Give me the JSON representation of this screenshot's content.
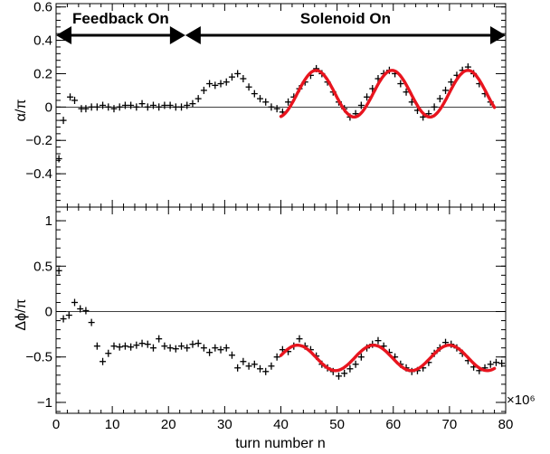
{
  "chart_data": [
    {
      "type": "scatter",
      "ylabel": "α/π",
      "xlim": [
        0,
        80
      ],
      "ylim": [
        -0.6,
        0.62
      ],
      "yticks": [
        -0.4,
        -0.2,
        0,
        0.2,
        0.4,
        0.6
      ],
      "ytick_labels": [
        "−0.4",
        "−0.2",
        "0",
        "0.2",
        "0.4",
        "0.6"
      ],
      "zero_line": true,
      "annotations": [
        {
          "text": "Feedback On",
          "arrow_from": 0,
          "arrow_to": 23
        },
        {
          "text": "Solenoid On",
          "arrow_from": 23,
          "arrow_to": 80
        }
      ],
      "series": [
        {
          "style": "crosses",
          "color": "#000000",
          "points": [
            [
              0.5,
              -0.31
            ],
            [
              1.3,
              -0.08
            ],
            [
              2.5,
              0.06
            ],
            [
              3.3,
              0.04
            ],
            [
              4.5,
              -0.01
            ],
            [
              5.3,
              -0.01
            ],
            [
              6.3,
              0.0
            ],
            [
              7.3,
              0.0
            ],
            [
              8.3,
              0.01
            ],
            [
              9.3,
              0.0
            ],
            [
              10.3,
              -0.01
            ],
            [
              11.3,
              0.0
            ],
            [
              12.3,
              0.01
            ],
            [
              13.3,
              0.01
            ],
            [
              14.3,
              0.0
            ],
            [
              15.3,
              0.02
            ],
            [
              16.3,
              0.0
            ],
            [
              17.3,
              0.01
            ],
            [
              18.3,
              0.0
            ],
            [
              19.3,
              0.01
            ],
            [
              20.3,
              0.01
            ],
            [
              21.3,
              0.0
            ],
            [
              22.3,
              0.0
            ],
            [
              23.3,
              0.01
            ],
            [
              24.3,
              0.02
            ],
            [
              25.3,
              0.05
            ],
            [
              26.3,
              0.1
            ],
            [
              27.3,
              0.14
            ],
            [
              28.3,
              0.13
            ],
            [
              29.3,
              0.14
            ],
            [
              30.3,
              0.15
            ],
            [
              31.3,
              0.18
            ],
            [
              32.3,
              0.2
            ],
            [
              33.3,
              0.17
            ],
            [
              34.3,
              0.12
            ],
            [
              35.3,
              0.08
            ],
            [
              36.3,
              0.05
            ],
            [
              37.3,
              0.03
            ],
            [
              38.3,
              0.0
            ],
            [
              39.3,
              -0.01
            ],
            [
              40.3,
              -0.03
            ],
            [
              41.3,
              0.03
            ],
            [
              42.3,
              0.06
            ],
            [
              43.3,
              0.11
            ],
            [
              44.3,
              0.15
            ],
            [
              45.3,
              0.19
            ],
            [
              46.3,
              0.23
            ],
            [
              47.3,
              0.2
            ],
            [
              48.3,
              0.15
            ],
            [
              49.3,
              0.09
            ],
            [
              50.3,
              0.03
            ],
            [
              51.3,
              -0.01
            ],
            [
              52.3,
              -0.06
            ],
            [
              53.3,
              -0.04
            ],
            [
              54.3,
              0.01
            ],
            [
              55.3,
              0.06
            ],
            [
              56.3,
              0.11
            ],
            [
              57.3,
              0.17
            ],
            [
              58.3,
              0.2
            ],
            [
              59.3,
              0.22
            ],
            [
              60.3,
              0.2
            ],
            [
              61.3,
              0.14
            ],
            [
              62.3,
              0.09
            ],
            [
              63.3,
              0.03
            ],
            [
              64.3,
              -0.02
            ],
            [
              65.3,
              -0.06
            ],
            [
              66.3,
              -0.04
            ],
            [
              67.3,
              0.0
            ],
            [
              68.3,
              0.05
            ],
            [
              69.3,
              0.1
            ],
            [
              70.3,
              0.15
            ],
            [
              71.3,
              0.19
            ],
            [
              72.3,
              0.22
            ],
            [
              73.3,
              0.24
            ],
            [
              74.3,
              0.2
            ],
            [
              75.3,
              0.14
            ],
            [
              76.3,
              0.08
            ],
            [
              77.3,
              0.03
            ]
          ]
        },
        {
          "style": "line",
          "color": "#e8141e",
          "fit": {
            "x_from": 40,
            "x_to": 78,
            "offset": 0.08,
            "amplitude": 0.14,
            "period": 13.5,
            "phase_x": 42.9
          }
        }
      ]
    },
    {
      "type": "scatter",
      "ylabel": "Δϕ/π",
      "xlabel": "turn number n",
      "xlim": [
        0,
        80
      ],
      "ylim": [
        -1.12,
        1.15
      ],
      "xticks": [
        0,
        10,
        20,
        30,
        40,
        50,
        60,
        70,
        80
      ],
      "xtick_labels": [
        "0",
        "10",
        "20",
        "30",
        "40",
        "50",
        "60",
        "70",
        "80"
      ],
      "yticks": [
        -1,
        -0.5,
        0,
        0.5,
        1
      ],
      "ytick_labels": [
        "−1",
        "−0.5",
        "0",
        "0.5",
        "1"
      ],
      "x_multiplier": "×10⁶",
      "zero_line": true,
      "series": [
        {
          "style": "crosses",
          "color": "#000000",
          "points": [
            [
              0.5,
              0.45
            ],
            [
              1.3,
              -0.08
            ],
            [
              2.3,
              -0.04
            ],
            [
              3.3,
              0.1
            ],
            [
              4.3,
              0.03
            ],
            [
              5.3,
              0.01
            ],
            [
              6.3,
              -0.12
            ],
            [
              7.3,
              -0.38
            ],
            [
              8.3,
              -0.55
            ],
            [
              9.3,
              -0.46
            ],
            [
              10.3,
              -0.38
            ],
            [
              11.3,
              -0.39
            ],
            [
              12.3,
              -0.38
            ],
            [
              13.3,
              -0.39
            ],
            [
              14.3,
              -0.37
            ],
            [
              15.3,
              -0.35
            ],
            [
              16.3,
              -0.36
            ],
            [
              17.3,
              -0.4
            ],
            [
              18.3,
              -0.3
            ],
            [
              19.3,
              -0.38
            ],
            [
              20.3,
              -0.4
            ],
            [
              21.3,
              -0.41
            ],
            [
              22.3,
              -0.38
            ],
            [
              23.3,
              -0.4
            ],
            [
              24.3,
              -0.36
            ],
            [
              25.3,
              -0.35
            ],
            [
              26.3,
              -0.4
            ],
            [
              27.3,
              -0.45
            ],
            [
              28.3,
              -0.4
            ],
            [
              29.3,
              -0.42
            ],
            [
              30.3,
              -0.4
            ],
            [
              31.3,
              -0.48
            ],
            [
              32.3,
              -0.62
            ],
            [
              33.3,
              -0.55
            ],
            [
              34.3,
              -0.6
            ],
            [
              35.3,
              -0.58
            ],
            [
              36.3,
              -0.63
            ],
            [
              37.3,
              -0.66
            ],
            [
              38.3,
              -0.6
            ],
            [
              39.3,
              -0.5
            ],
            [
              40.3,
              -0.42
            ],
            [
              41.3,
              -0.44
            ],
            [
              42.3,
              -0.38
            ],
            [
              43.3,
              -0.3
            ],
            [
              44.3,
              -0.38
            ],
            [
              45.3,
              -0.42
            ],
            [
              46.3,
              -0.49
            ],
            [
              47.3,
              -0.58
            ],
            [
              48.3,
              -0.62
            ],
            [
              49.3,
              -0.66
            ],
            [
              50.3,
              -0.71
            ],
            [
              51.3,
              -0.68
            ],
            [
              52.3,
              -0.63
            ],
            [
              53.3,
              -0.58
            ],
            [
              54.3,
              -0.5
            ],
            [
              55.3,
              -0.4
            ],
            [
              56.3,
              -0.36
            ],
            [
              57.3,
              -0.32
            ],
            [
              58.3,
              -0.38
            ],
            [
              59.3,
              -0.45
            ],
            [
              60.3,
              -0.5
            ],
            [
              61.3,
              -0.58
            ],
            [
              62.3,
              -0.62
            ],
            [
              63.3,
              -0.66
            ],
            [
              64.3,
              -0.65
            ],
            [
              65.3,
              -0.62
            ],
            [
              66.3,
              -0.56
            ],
            [
              67.3,
              -0.46
            ],
            [
              68.3,
              -0.4
            ],
            [
              69.3,
              -0.34
            ],
            [
              70.3,
              -0.36
            ],
            [
              71.3,
              -0.4
            ],
            [
              72.3,
              -0.46
            ],
            [
              73.3,
              -0.54
            ],
            [
              74.3,
              -0.61
            ],
            [
              75.3,
              -0.65
            ],
            [
              76.3,
              -0.62
            ],
            [
              77.3,
              -0.58
            ],
            [
              78.3,
              -0.56
            ],
            [
              79.3,
              -0.57
            ]
          ]
        },
        {
          "style": "line",
          "color": "#e8141e",
          "fit": {
            "x_from": 40,
            "x_to": 78,
            "offset": -0.51,
            "amplitude": 0.14,
            "period": 13.5,
            "phase_x": 39.6
          }
        }
      ]
    }
  ]
}
